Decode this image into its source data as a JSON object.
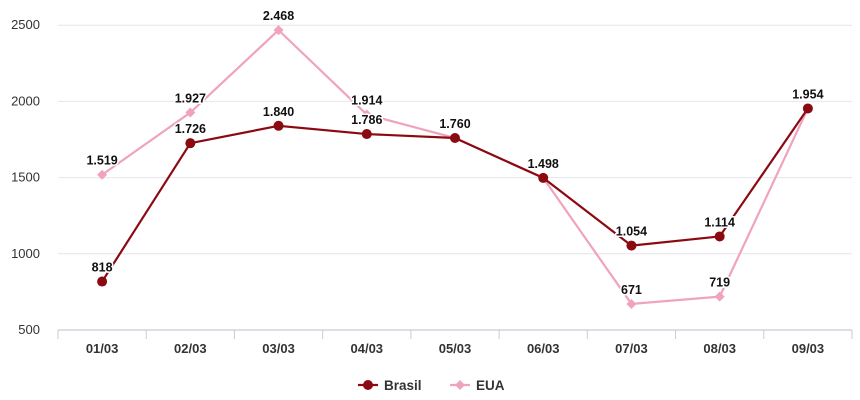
{
  "chart_data": {
    "type": "line",
    "categories": [
      "01/03",
      "02/03",
      "03/03",
      "04/03",
      "05/03",
      "06/03",
      "07/03",
      "08/03",
      "09/03"
    ],
    "ylim": [
      500,
      2600
    ],
    "yticks": [
      "500",
      "1000",
      "1500",
      "2000",
      "2500"
    ],
    "grid": true,
    "legend_position": "bottom-center",
    "series": [
      {
        "name": "Brasil",
        "color": "#8b0a12",
        "marker": "circle",
        "values": [
          818,
          1726,
          1840,
          1786,
          1760,
          1498,
          1054,
          1114,
          1954
        ],
        "labels": [
          "818",
          "1.726",
          "1.840",
          "1.786",
          "1.760",
          "1.498",
          "1.054",
          "1.114",
          "1.954"
        ]
      },
      {
        "name": "EUA",
        "color": "#f0a3bd",
        "marker": "diamond",
        "values": [
          1519,
          1927,
          2468,
          1914,
          1760,
          1498,
          671,
          719,
          1954
        ],
        "labels": [
          "1.519",
          "1.927",
          "2.468",
          "1.914",
          "1.760",
          "",
          "671",
          "719",
          ""
        ]
      }
    ]
  }
}
